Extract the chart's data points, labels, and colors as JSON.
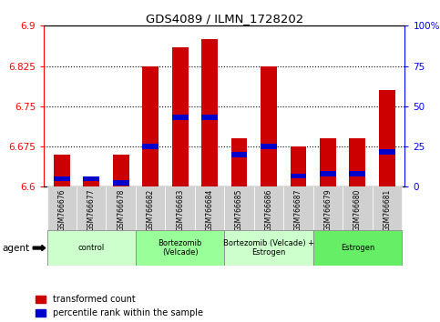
{
  "title": "GDS4089 / ILMN_1728202",
  "samples": [
    "GSM766676",
    "GSM766677",
    "GSM766678",
    "GSM766682",
    "GSM766683",
    "GSM766684",
    "GSM766685",
    "GSM766686",
    "GSM766687",
    "GSM766679",
    "GSM766680",
    "GSM766681"
  ],
  "red_values": [
    6.66,
    6.61,
    6.66,
    6.825,
    6.86,
    6.875,
    6.69,
    6.825,
    6.675,
    6.69,
    6.69,
    6.78
  ],
  "blue_values": [
    6.615,
    6.615,
    6.608,
    6.675,
    6.73,
    6.73,
    6.66,
    6.675,
    6.62,
    6.625,
    6.625,
    6.665
  ],
  "y_min": 6.6,
  "y_max": 6.9,
  "y_ticks": [
    6.6,
    6.675,
    6.75,
    6.825,
    6.9
  ],
  "right_y_ticks": [
    0,
    25,
    50,
    75,
    100
  ],
  "right_y_labels": [
    "0",
    "25",
    "50",
    "75",
    "100%"
  ],
  "groups": [
    {
      "label": "control",
      "start": 0,
      "end": 3,
      "color": "#ccffcc"
    },
    {
      "label": "Bortezomib\n(Velcade)",
      "start": 3,
      "end": 6,
      "color": "#99ff99"
    },
    {
      "label": "Bortezomib (Velcade) +\nEstrogen",
      "start": 6,
      "end": 9,
      "color": "#ccffcc"
    },
    {
      "label": "Estrogen",
      "start": 9,
      "end": 12,
      "color": "#66ee66"
    }
  ],
  "bar_width": 0.55,
  "red_color": "#cc0000",
  "blue_color": "#0000cc",
  "blue_bar_height": 0.01,
  "bg_color": "#ffffff",
  "plot_bg": "#ffffff",
  "gray_color": "#d0d0d0",
  "agent_label": "agent"
}
